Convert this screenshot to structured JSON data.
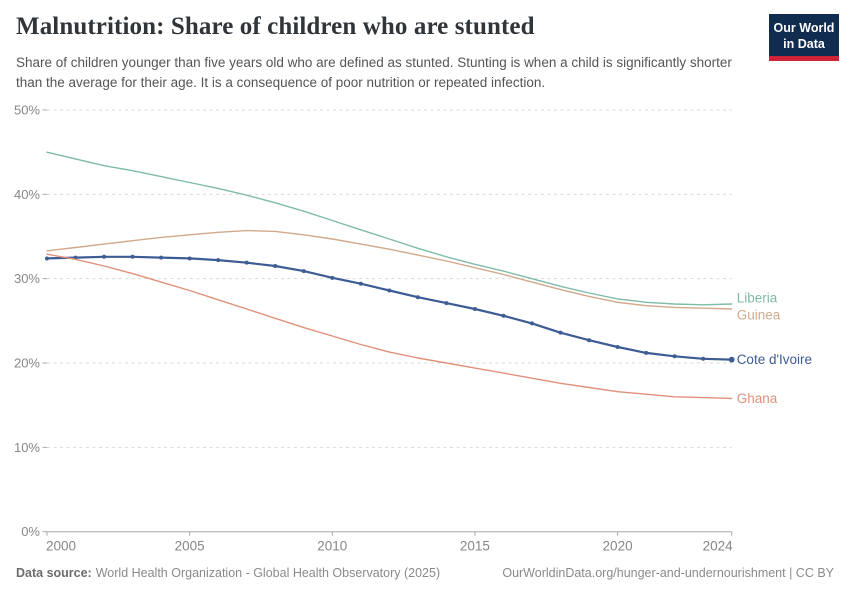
{
  "header": {
    "title": "Malnutrition: Share of children who are stunted",
    "subtitle": "Share of children younger than five years old who are defined as stunted. Stunting is when a child is significantly shorter than the average for their age. It is a consequence of poor nutrition or repeated infection.",
    "logo": {
      "line1": "Our World",
      "line2": "in Data",
      "bg_color": "#102d50",
      "accent_color": "#cf2438"
    }
  },
  "chart_data": {
    "type": "line",
    "title": "Malnutrition: Share of children who are stunted",
    "x": [
      2000,
      2001,
      2002,
      2003,
      2004,
      2005,
      2006,
      2007,
      2008,
      2009,
      2010,
      2011,
      2012,
      2013,
      2014,
      2015,
      2016,
      2017,
      2018,
      2019,
      2020,
      2021,
      2022,
      2023,
      2024
    ],
    "series": [
      {
        "name": "Liberia",
        "color": "#7fbca5",
        "marker": false,
        "values": [
          45.0,
          44.2,
          43.4,
          42.8,
          42.1,
          41.4,
          40.7,
          39.9,
          39.0,
          38.0,
          36.9,
          35.8,
          34.7,
          33.6,
          32.6,
          31.7,
          30.9,
          30.0,
          29.1,
          28.3,
          27.6,
          27.2,
          27.0,
          26.9,
          27.0
        ]
      },
      {
        "name": "Guinea",
        "color": "#d2a98b",
        "marker": false,
        "values": [
          33.3,
          33.7,
          34.1,
          34.5,
          34.9,
          35.2,
          35.5,
          35.7,
          35.6,
          35.2,
          34.7,
          34.1,
          33.5,
          32.8,
          32.1,
          31.3,
          30.5,
          29.6,
          28.7,
          27.9,
          27.2,
          26.8,
          26.6,
          26.5,
          26.4
        ]
      },
      {
        "name": "Cote d'Ivoire",
        "color": "#3d5c94",
        "marker": true,
        "values": [
          32.4,
          32.5,
          32.6,
          32.6,
          32.5,
          32.4,
          32.2,
          31.9,
          31.5,
          30.9,
          30.1,
          29.4,
          28.6,
          27.8,
          27.1,
          26.4,
          25.6,
          24.7,
          23.6,
          22.7,
          21.9,
          21.2,
          20.8,
          20.5,
          20.4
        ]
      },
      {
        "name": "Ghana",
        "color": "#e0917a",
        "marker": false,
        "values": [
          32.9,
          32.3,
          31.5,
          30.6,
          29.6,
          28.6,
          27.5,
          26.4,
          25.3,
          24.2,
          23.2,
          22.2,
          21.3,
          20.6,
          20.0,
          19.4,
          18.8,
          18.2,
          17.6,
          17.1,
          16.6,
          16.3,
          16.0,
          15.9,
          15.8
        ]
      }
    ],
    "xlabel": "",
    "ylabel": "",
    "ylim": [
      0,
      50
    ],
    "y_ticks": [
      0,
      10,
      20,
      30,
      40,
      50
    ],
    "y_tick_suffix": "%",
    "x_ticks": [
      2000,
      2005,
      2010,
      2015,
      2020,
      2024
    ],
    "grid": "horizontal-dashed",
    "legend_position": "right-of-line-ends",
    "axis_color": "#a8a8a8",
    "grid_color": "#dadada",
    "tick_label_color": "#878787"
  },
  "footer": {
    "datasource_label": "Data source:",
    "datasource_text": "World Health Organization - Global Health Observatory (2025)",
    "note": "OurWorldinData.org/hunger-and-undernourishment | CC BY"
  }
}
